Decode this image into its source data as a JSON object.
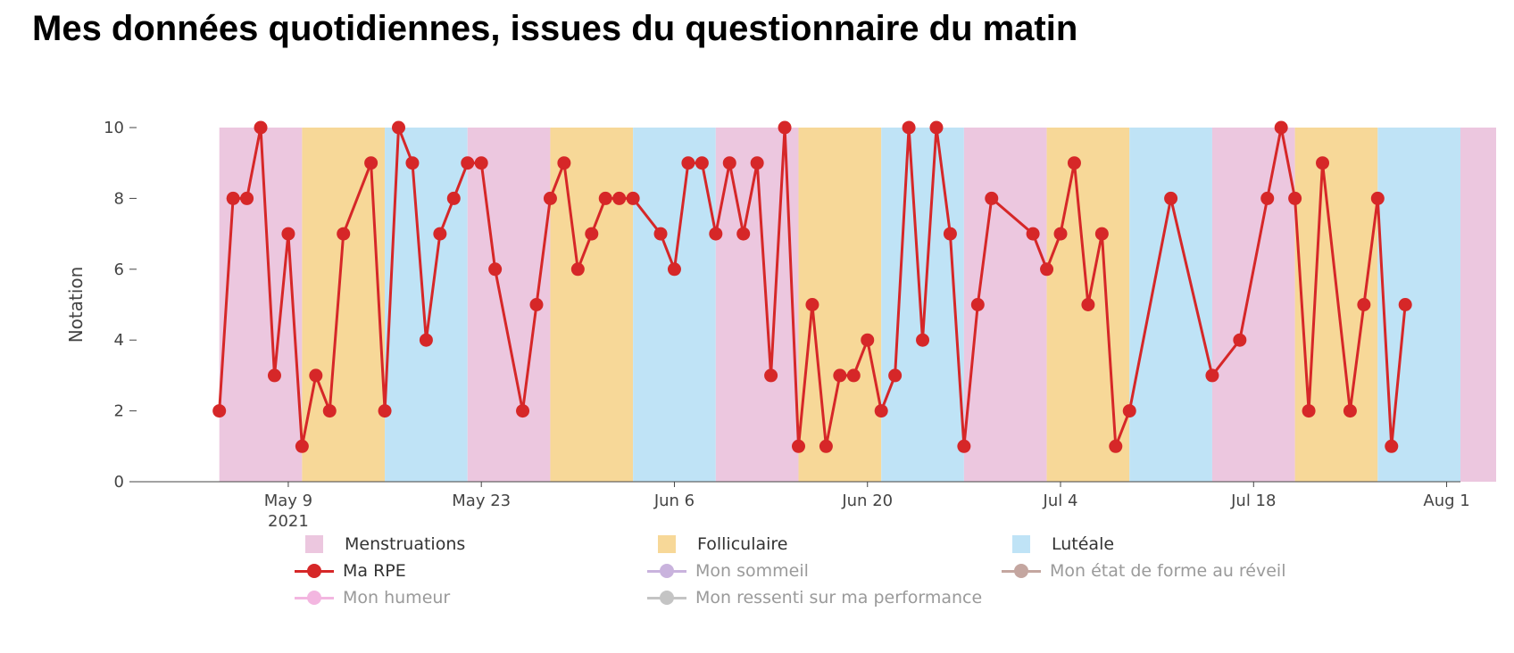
{
  "page": {
    "title": "Mes données quotidiennes, issues du questionnaire du matin"
  },
  "chart_data": {
    "type": "line",
    "title": "",
    "ylabel": "Notation",
    "ylim": [
      0,
      10
    ],
    "yticks": [
      0,
      2,
      4,
      6,
      8,
      10
    ],
    "xlim": [
      "2021-04-28",
      "2021-08-02"
    ],
    "xticks": [
      {
        "date": "2021-05-09",
        "label": "May 9",
        "sublabel": "2021"
      },
      {
        "date": "2021-05-23",
        "label": "May 23",
        "sublabel": ""
      },
      {
        "date": "2021-06-06",
        "label": "Jun 6",
        "sublabel": ""
      },
      {
        "date": "2021-06-20",
        "label": "Jun 20",
        "sublabel": ""
      },
      {
        "date": "2021-07-04",
        "label": "Jul 4",
        "sublabel": ""
      },
      {
        "date": "2021-07-18",
        "label": "Jul 18",
        "sublabel": ""
      },
      {
        "date": "2021-08-01",
        "label": "Aug 1",
        "sublabel": ""
      }
    ],
    "phases": [
      {
        "phase": "Menstruations",
        "start": "2021-05-04",
        "end": "2021-05-10"
      },
      {
        "phase": "Folliculaire",
        "start": "2021-05-10",
        "end": "2021-05-16"
      },
      {
        "phase": "Lutéale",
        "start": "2021-05-16",
        "end": "2021-05-22"
      },
      {
        "phase": "Menstruations",
        "start": "2021-05-22",
        "end": "2021-05-28"
      },
      {
        "phase": "Folliculaire",
        "start": "2021-05-28",
        "end": "2021-06-03"
      },
      {
        "phase": "Lutéale",
        "start": "2021-06-03",
        "end": "2021-06-09"
      },
      {
        "phase": "Menstruations",
        "start": "2021-06-09",
        "end": "2021-06-15"
      },
      {
        "phase": "Folliculaire",
        "start": "2021-06-15",
        "end": "2021-06-21"
      },
      {
        "phase": "Lutéale",
        "start": "2021-06-21",
        "end": "2021-06-27"
      },
      {
        "phase": "Menstruations",
        "start": "2021-06-27",
        "end": "2021-07-03"
      },
      {
        "phase": "Folliculaire",
        "start": "2021-07-03",
        "end": "2021-07-09"
      },
      {
        "phase": "Lutéale",
        "start": "2021-07-09",
        "end": "2021-07-15"
      },
      {
        "phase": "Menstruations",
        "start": "2021-07-15",
        "end": "2021-07-21"
      },
      {
        "phase": "Folliculaire",
        "start": "2021-07-21",
        "end": "2021-07-27"
      },
      {
        "phase": "Lutéale",
        "start": "2021-07-27",
        "end": "2021-08-02"
      },
      {
        "phase": "Menstruations",
        "start": "2021-08-02",
        "end": "2021-08-05"
      }
    ],
    "series": [
      {
        "name": "Ma RPE",
        "x": [
          "2021-05-04",
          "2021-05-05",
          "2021-05-06",
          "2021-05-07",
          "2021-05-08",
          "2021-05-09",
          "2021-05-10",
          "2021-05-11",
          "2021-05-12",
          "2021-05-13",
          "2021-05-15",
          "2021-05-16",
          "2021-05-17",
          "2021-05-18",
          "2021-05-19",
          "2021-05-20",
          "2021-05-21",
          "2021-05-22",
          "2021-05-23",
          "2021-05-24",
          "2021-05-26",
          "2021-05-27",
          "2021-05-28",
          "2021-05-29",
          "2021-05-30",
          "2021-05-31",
          "2021-06-01",
          "2021-06-02",
          "2021-06-03",
          "2021-06-05",
          "2021-06-06",
          "2021-06-07",
          "2021-06-08",
          "2021-06-09",
          "2021-06-10",
          "2021-06-11",
          "2021-06-12",
          "2021-06-13",
          "2021-06-14",
          "2021-06-15",
          "2021-06-16",
          "2021-06-17",
          "2021-06-18",
          "2021-06-19",
          "2021-06-20",
          "2021-06-21",
          "2021-06-22",
          "2021-06-23",
          "2021-06-24",
          "2021-06-25",
          "2021-06-26",
          "2021-06-27",
          "2021-06-28",
          "2021-06-29",
          "2021-07-02",
          "2021-07-03",
          "2021-07-04",
          "2021-07-05",
          "2021-07-06",
          "2021-07-07",
          "2021-07-08",
          "2021-07-09",
          "2021-07-12",
          "2021-07-15",
          "2021-07-17",
          "2021-07-19",
          "2021-07-20",
          "2021-07-21",
          "2021-07-22",
          "2021-07-23",
          "2021-07-25",
          "2021-07-26",
          "2021-07-27",
          "2021-07-28",
          "2021-07-29"
        ],
        "y": [
          2,
          8,
          8,
          10,
          3,
          7,
          1,
          3,
          2,
          7,
          9,
          2,
          10,
          9,
          4,
          7,
          8,
          9,
          9,
          6,
          2,
          5,
          8,
          9,
          6,
          7,
          8,
          8,
          8,
          7,
          6,
          9,
          9,
          7,
          9,
          7,
          9,
          3,
          10,
          1,
          5,
          1,
          3,
          3,
          4,
          2,
          3,
          10,
          4,
          10,
          7,
          1,
          5,
          8,
          7,
          6,
          7,
          9,
          5,
          7,
          1,
          2,
          8,
          3,
          4,
          8,
          10,
          8,
          2,
          9,
          2,
          5,
          8,
          1,
          5
        ]
      }
    ],
    "legend": [
      {
        "label": "Menstruations",
        "kind": "box",
        "color": "#ecc7df",
        "active": true
      },
      {
        "label": "Folliculaire",
        "kind": "box",
        "color": "#f7d898",
        "active": true
      },
      {
        "label": "Lutéale",
        "kind": "box",
        "color": "#bfe3f6",
        "active": true
      },
      {
        "label": "Ma RPE",
        "kind": "line",
        "color": "#d62728",
        "active": true
      },
      {
        "label": "Mon sommeil",
        "kind": "line",
        "color": "#c9b3dd",
        "active": false
      },
      {
        "label": "Mon état de forme au réveil",
        "kind": "line",
        "color": "#c4a6a0",
        "active": false
      },
      {
        "label": "Mon humeur",
        "kind": "line",
        "color": "#f3b6e0",
        "active": false
      },
      {
        "label": "Mon ressenti sur ma performance",
        "kind": "line",
        "color": "#c4c4c4",
        "active": false
      }
    ],
    "colors": {
      "menstruations": "#ecc7df",
      "folliculaire": "#f7d898",
      "luteale": "#bfe3f6",
      "line": "#d62728"
    }
  }
}
